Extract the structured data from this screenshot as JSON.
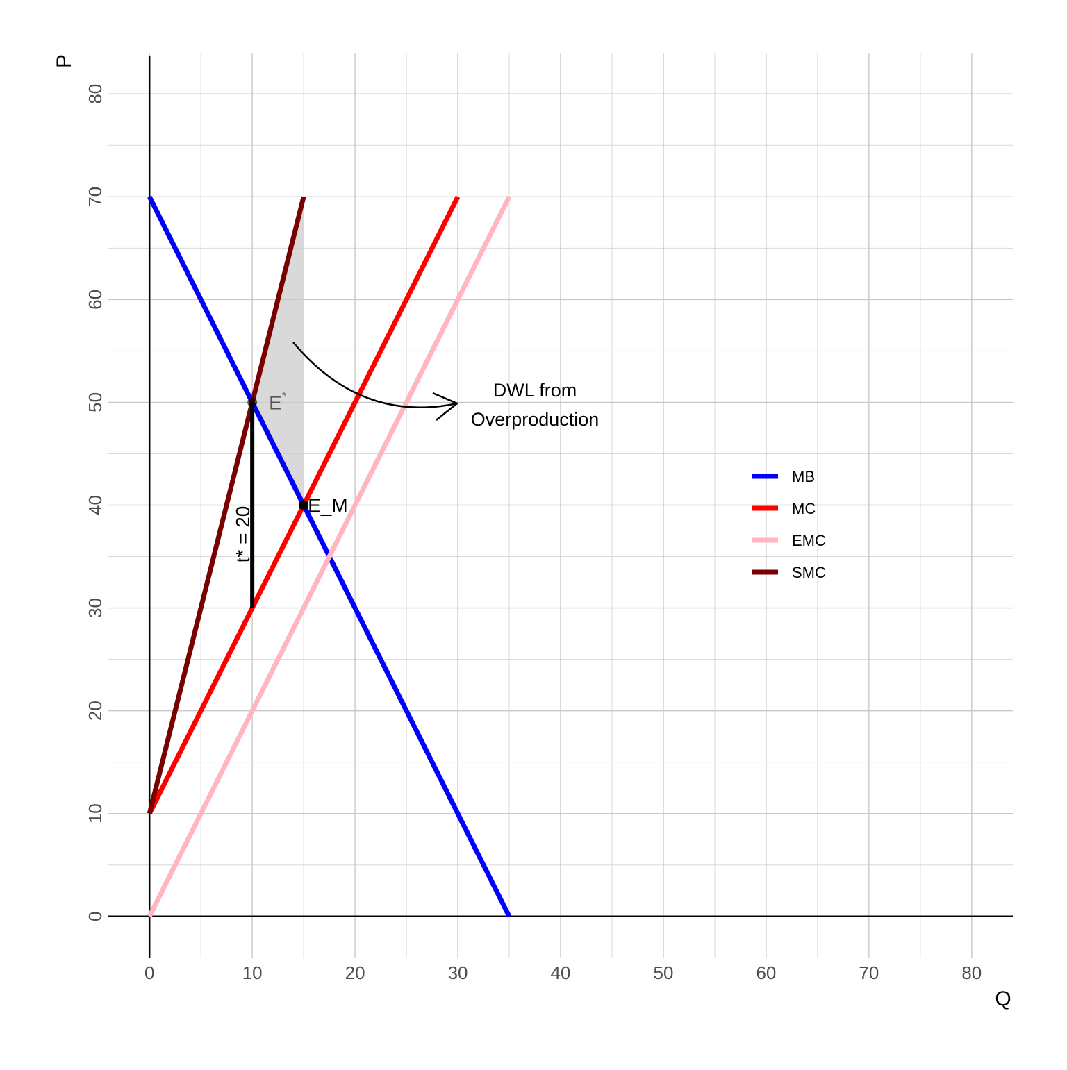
{
  "chart_data": {
    "type": "line",
    "xlabel": "Q",
    "ylabel": "P",
    "xlim": [
      -4,
      84
    ],
    "ylim": [
      -4,
      84
    ],
    "xticks": [
      0,
      10,
      20,
      30,
      40,
      50,
      60,
      70,
      80
    ],
    "yticks": [
      0,
      10,
      20,
      30,
      40,
      50,
      60,
      70,
      80
    ],
    "xminor": [
      5,
      15,
      25,
      35,
      45,
      55,
      65,
      75
    ],
    "yminor": [
      5,
      15,
      25,
      35,
      45,
      55,
      65,
      75
    ],
    "grid": true,
    "legend": "right",
    "series": [
      {
        "name": "MB",
        "color": "#0000ff",
        "x": [
          0,
          35
        ],
        "values": [
          70,
          0
        ]
      },
      {
        "name": "MC",
        "color": "#ff0000",
        "x": [
          0,
          30
        ],
        "values": [
          10,
          70
        ]
      },
      {
        "name": "EMC",
        "color": "#ffb6c1",
        "x": [
          0,
          35
        ],
        "values": [
          0,
          70
        ]
      },
      {
        "name": "SMC",
        "color": "#7b0000",
        "x": [
          0,
          15
        ],
        "values": [
          10,
          70
        ]
      }
    ],
    "shade": {
      "color": "#cccccc",
      "x": [
        10,
        15,
        15
      ],
      "values": [
        50,
        70,
        40
      ]
    },
    "points": [
      {
        "label": "E",
        "superscript": "*",
        "x": 10,
        "y": 50
      },
      {
        "label": "E_M",
        "x": 15,
        "y": 40
      }
    ],
    "tax": {
      "x": 10,
      "from": 30,
      "to": 50,
      "label": "t* = 20"
    },
    "annotation": [
      "DWL from",
      "Overproduction"
    ]
  }
}
